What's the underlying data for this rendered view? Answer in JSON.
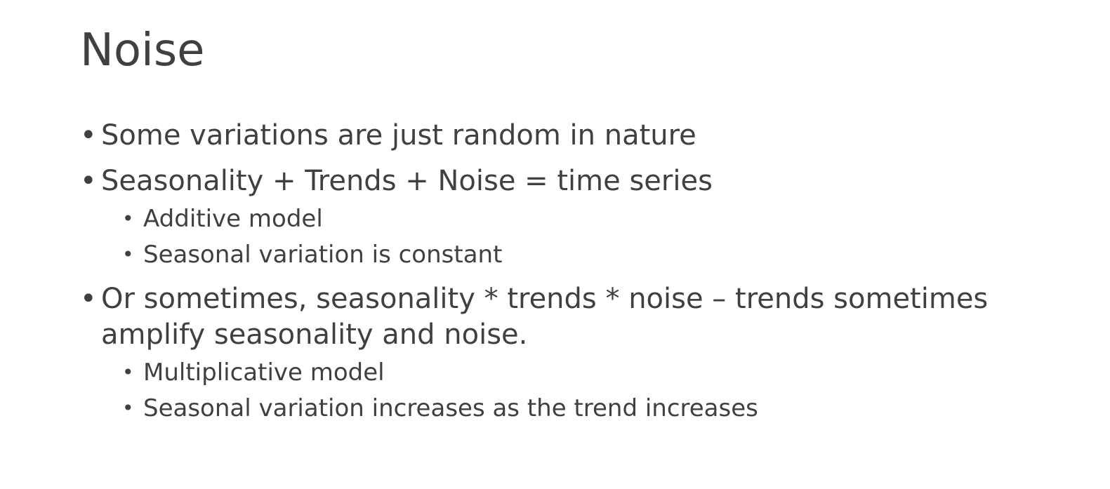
{
  "slide": {
    "title": "Noise",
    "bullets": [
      {
        "text": "Some variations are just random in nature"
      },
      {
        "text": "Seasonality + Trends + Noise = time series",
        "sub": [
          "Additive model",
          "Seasonal variation is constant"
        ]
      },
      {
        "text": "Or sometimes, seasonality * trends * noise – trends sometimes amplify seasonality and noise.",
        "sub": [
          "Multiplicative model",
          "Seasonal variation increases as the trend increases"
        ]
      }
    ]
  }
}
